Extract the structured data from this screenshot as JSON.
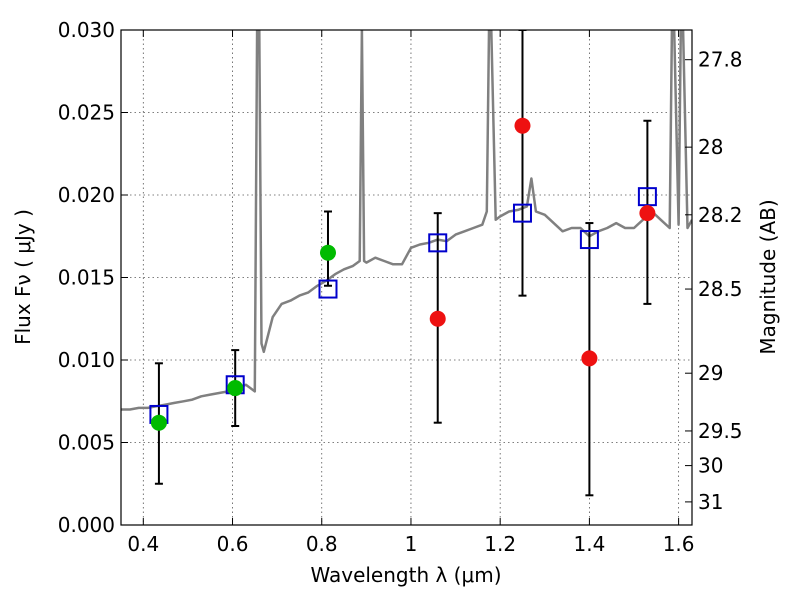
{
  "chart_data": {
    "type": "scatter",
    "xlabel": "Wavelength  λ (μm)",
    "ylabel": "Flux  Fν  ( μJy )",
    "y2label": "Magnitude (AB)",
    "xlim": [
      0.35,
      1.63
    ],
    "ylim": [
      0.0,
      0.03
    ],
    "grid": true,
    "x_ticks": [
      {
        "value": 0.4,
        "label": "0.4"
      },
      {
        "value": 0.6,
        "label": "0.6"
      },
      {
        "value": 0.8,
        "label": "0.8"
      },
      {
        "value": 1.0,
        "label": "1"
      },
      {
        "value": 1.2,
        "label": "1.2"
      },
      {
        "value": 1.4,
        "label": "1.4"
      },
      {
        "value": 1.6,
        "label": "1.6"
      }
    ],
    "y_ticks": [
      {
        "value": 0.0,
        "label": "0.000"
      },
      {
        "value": 0.005,
        "label": "0.005"
      },
      {
        "value": 0.01,
        "label": "0.010"
      },
      {
        "value": 0.015,
        "label": "0.015"
      },
      {
        "value": 0.02,
        "label": "0.020"
      },
      {
        "value": 0.025,
        "label": "0.025"
      },
      {
        "value": 0.03,
        "label": "0.030"
      }
    ],
    "y2_ticks": [
      {
        "flux": 0.0282,
        "label": "27.8"
      },
      {
        "flux": 0.0229,
        "label": "28"
      },
      {
        "flux": 0.0188,
        "label": "28.2"
      },
      {
        "flux": 0.0143,
        "label": "28.5"
      },
      {
        "flux": 0.0092,
        "label": "29"
      },
      {
        "flux": 0.0057,
        "label": "29.5"
      },
      {
        "flux": 0.0036,
        "label": "30"
      },
      {
        "flux": 0.0014,
        "label": "31"
      }
    ],
    "series": [
      {
        "kind": "model-spectrum",
        "color": "#808080",
        "x": [
          0.35,
          0.37,
          0.39,
          0.41,
          0.43,
          0.45,
          0.47,
          0.49,
          0.51,
          0.53,
          0.55,
          0.57,
          0.59,
          0.61,
          0.63,
          0.65,
          0.655,
          0.66,
          0.665,
          0.67,
          0.69,
          0.71,
          0.73,
          0.75,
          0.77,
          0.79,
          0.81,
          0.83,
          0.85,
          0.87,
          0.885,
          0.89,
          0.895,
          0.9,
          0.92,
          0.94,
          0.96,
          0.98,
          1.0,
          1.02,
          1.04,
          1.06,
          1.08,
          1.1,
          1.12,
          1.14,
          1.16,
          1.17,
          1.175,
          1.18,
          1.19,
          1.2,
          1.22,
          1.24,
          1.26,
          1.27,
          1.28,
          1.3,
          1.32,
          1.34,
          1.36,
          1.38,
          1.4,
          1.42,
          1.44,
          1.46,
          1.48,
          1.5,
          1.52,
          1.54,
          1.56,
          1.58,
          1.585,
          1.59,
          1.6,
          1.605,
          1.61,
          1.62,
          1.63
        ],
        "y": [
          0.007,
          0.007,
          0.0071,
          0.0071,
          0.0072,
          0.0073,
          0.0074,
          0.0075,
          0.0076,
          0.0078,
          0.0079,
          0.008,
          0.0081,
          0.0083,
          0.0085,
          0.0081,
          0.03,
          0.03,
          0.011,
          0.0105,
          0.0126,
          0.0134,
          0.0136,
          0.0139,
          0.0141,
          0.0145,
          0.0148,
          0.0152,
          0.0155,
          0.0157,
          0.016,
          0.03,
          0.016,
          0.0159,
          0.0162,
          0.016,
          0.0158,
          0.0158,
          0.0168,
          0.017,
          0.0171,
          0.0173,
          0.0172,
          0.0176,
          0.0178,
          0.018,
          0.0182,
          0.019,
          0.03,
          0.03,
          0.0185,
          0.0187,
          0.019,
          0.0191,
          0.0193,
          0.021,
          0.019,
          0.0188,
          0.0183,
          0.0178,
          0.018,
          0.018,
          0.0175,
          0.0178,
          0.018,
          0.0183,
          0.018,
          0.018,
          0.0185,
          0.019,
          0.0185,
          0.018,
          0.03,
          0.03,
          0.0182,
          0.03,
          0.03,
          0.018,
          0.0185
        ]
      },
      {
        "kind": "model-photometry",
        "marker": "open-square",
        "color": "#0000cc",
        "x": [
          0.435,
          0.606,
          0.814,
          1.06,
          1.25,
          1.4,
          1.53
        ],
        "y": [
          0.0067,
          0.0085,
          0.0143,
          0.0171,
          0.0189,
          0.0173,
          0.0199
        ]
      },
      {
        "kind": "detections",
        "marker": "filled-circle",
        "color": "#00bb00",
        "x": [
          0.435,
          0.606,
          0.814
        ],
        "y": [
          0.0062,
          0.0083,
          0.0165
        ],
        "err_low": [
          0.0025,
          0.006,
          0.0145
        ],
        "err_high": [
          0.0098,
          0.0106,
          0.019
        ]
      },
      {
        "kind": "upper-limits",
        "marker": "filled-circle",
        "color": "#ee1111",
        "x": [
          1.06,
          1.25,
          1.4,
          1.53
        ],
        "y": [
          0.0125,
          0.0242,
          0.0101,
          0.0189
        ],
        "err_low": [
          0.0062,
          0.0139,
          0.0018,
          0.0134
        ],
        "err_high": [
          0.0189,
          0.03,
          0.0183,
          0.0245
        ]
      }
    ]
  }
}
